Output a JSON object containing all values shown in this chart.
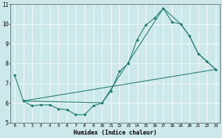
{
  "title": "",
  "xlabel": "Humidex (Indice chaleur)",
  "ylabel": "",
  "xlim": [
    -0.5,
    23.5
  ],
  "ylim": [
    5,
    11
  ],
  "yticks": [
    5,
    6,
    7,
    8,
    9,
    10,
    11
  ],
  "xticks": [
    0,
    1,
    2,
    3,
    4,
    5,
    6,
    7,
    8,
    9,
    10,
    11,
    12,
    13,
    14,
    15,
    16,
    17,
    18,
    19,
    20,
    21,
    22,
    23
  ],
  "bg_color": "#cce8eb",
  "line_color": "#1a7a6e",
  "grid_color": "#ffffff",
  "line1_x": [
    0,
    1,
    2,
    3,
    4,
    5,
    6,
    7,
    8,
    9,
    10,
    11,
    12,
    13,
    14,
    15,
    16,
    17,
    18,
    19,
    20,
    21,
    22,
    23
  ],
  "line1_y": [
    7.4,
    6.1,
    5.85,
    5.9,
    5.9,
    5.7,
    5.65,
    5.4,
    5.4,
    5.85,
    6.0,
    6.6,
    7.6,
    8.0,
    9.2,
    9.95,
    10.3,
    10.8,
    10.1,
    10.0,
    9.4,
    8.5,
    8.1,
    7.7
  ],
  "line2_x": [
    1,
    10,
    17,
    19,
    20,
    21,
    22,
    23
  ],
  "line2_y": [
    6.1,
    6.0,
    10.8,
    10.0,
    9.4,
    8.5,
    8.1,
    7.7
  ],
  "line3_x": [
    1,
    23
  ],
  "line3_y": [
    6.1,
    7.7
  ]
}
